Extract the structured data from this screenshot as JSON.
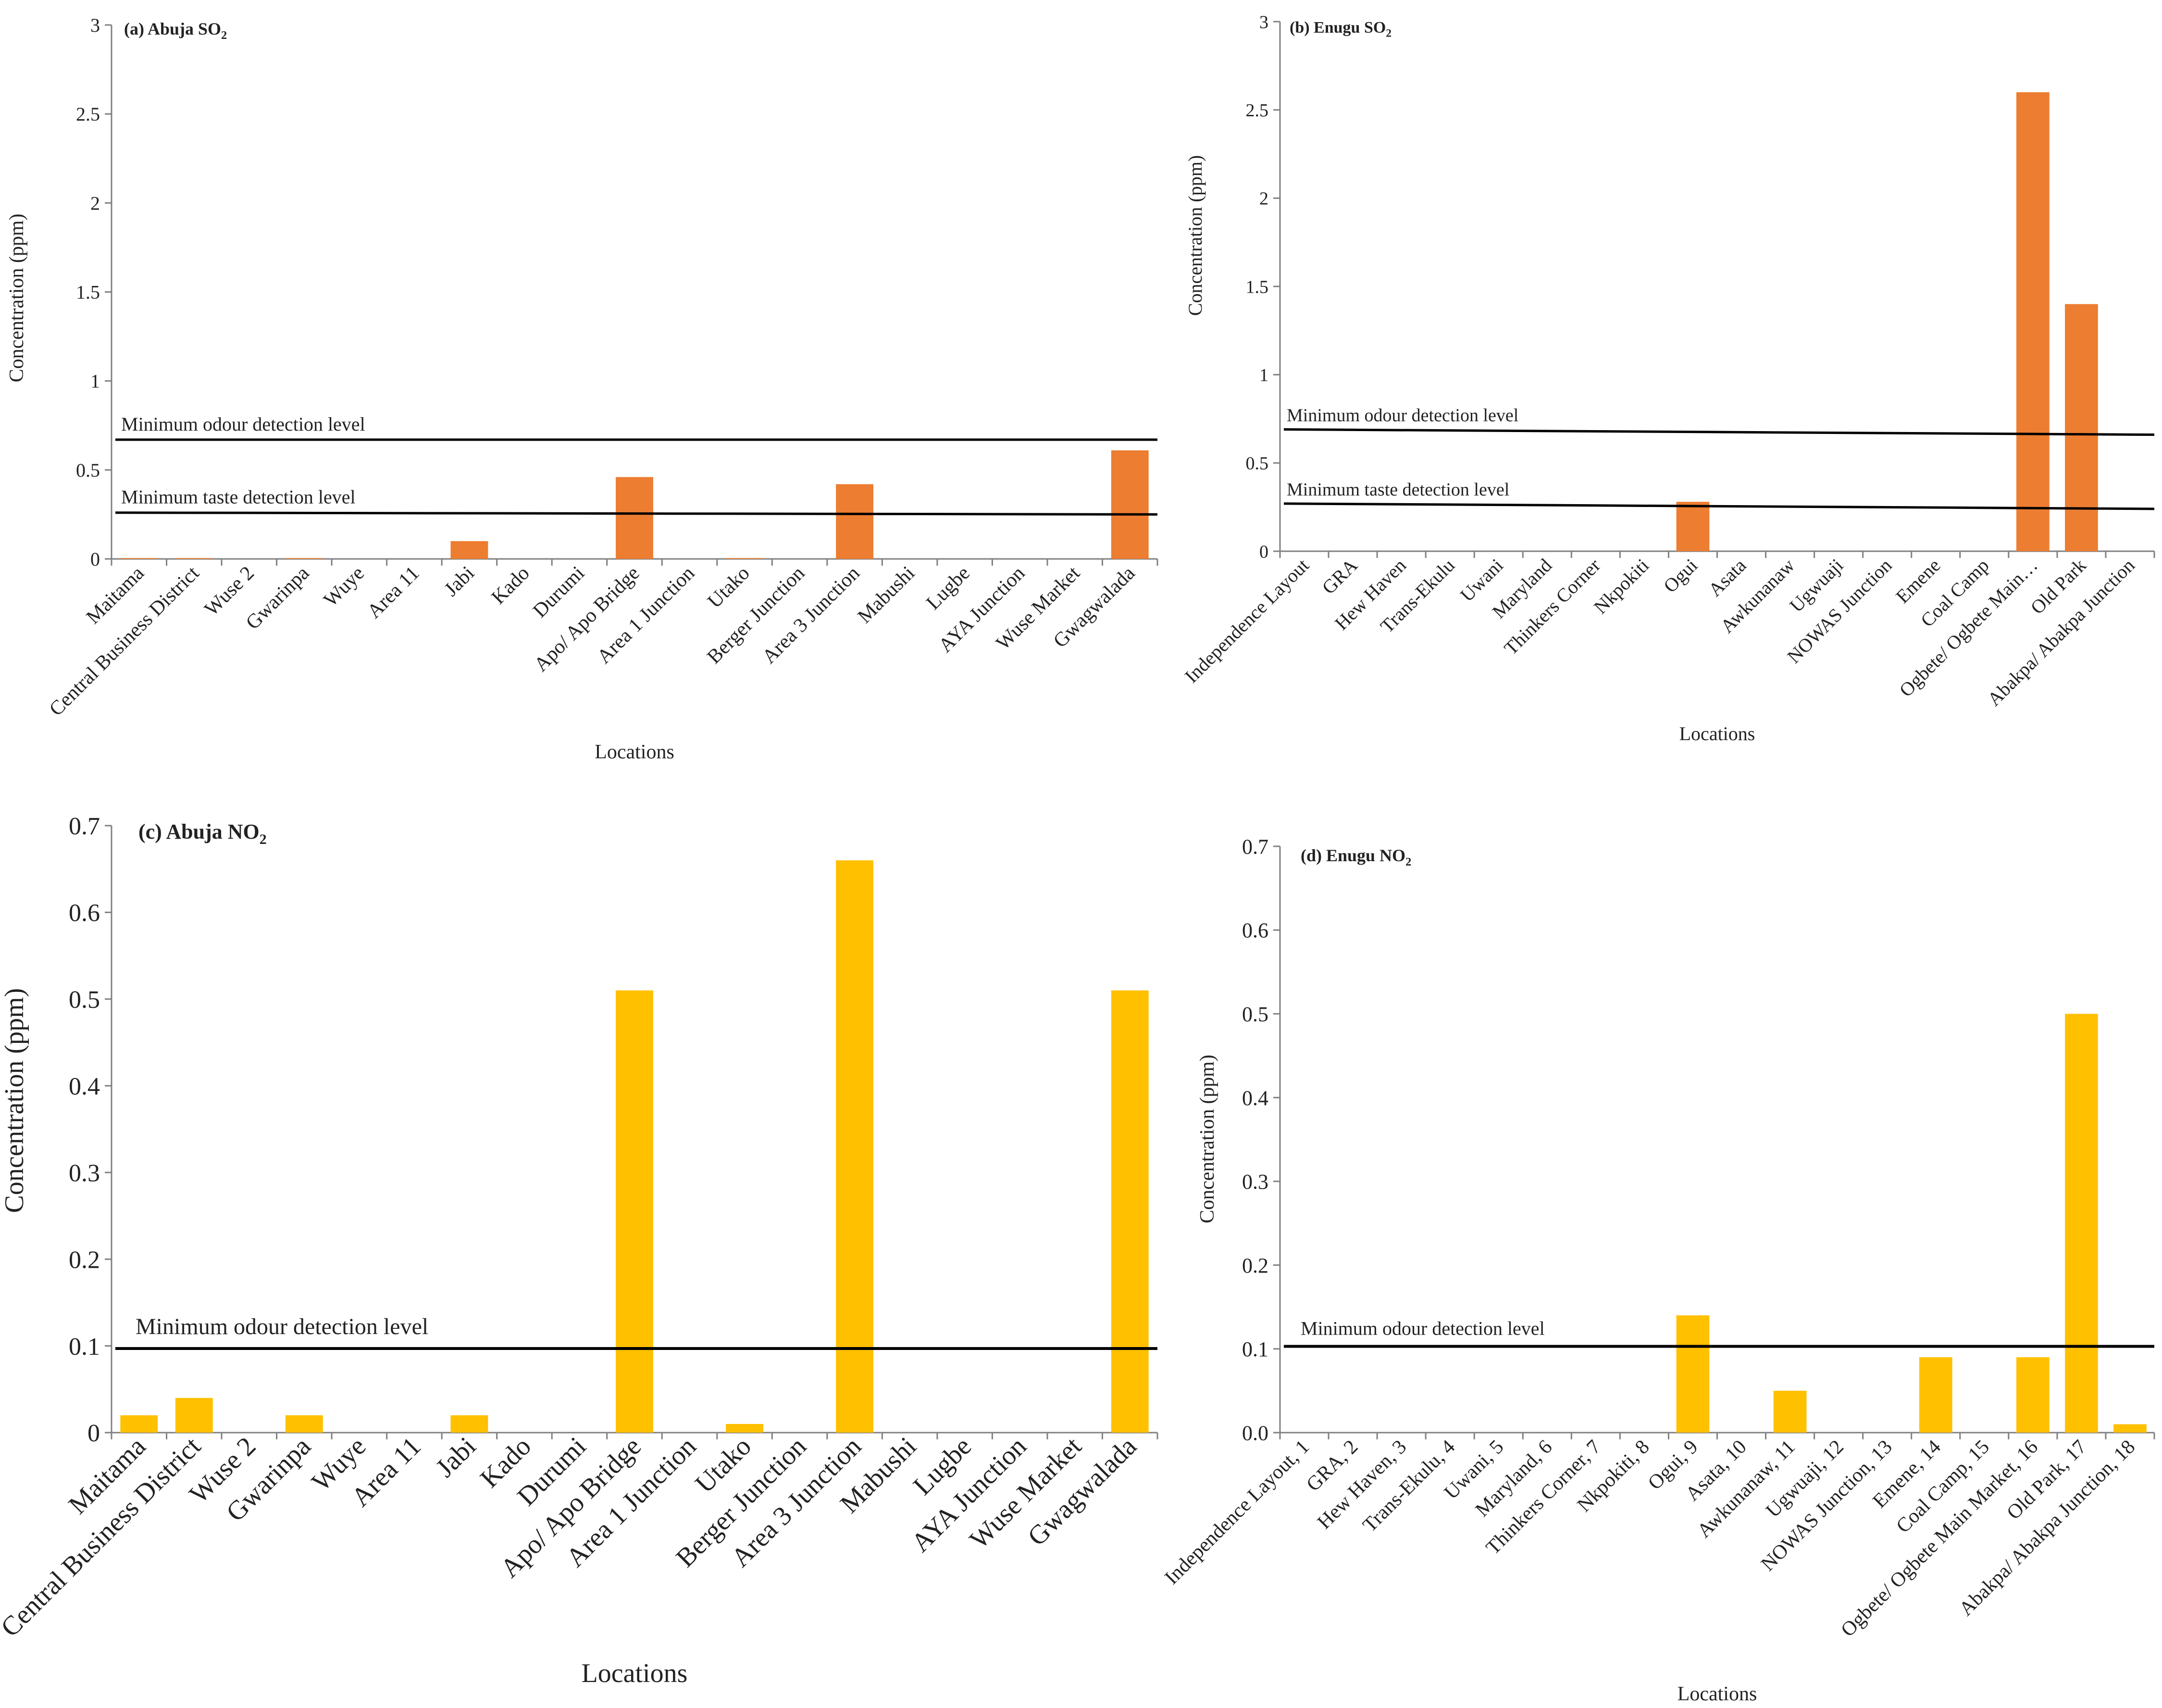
{
  "chart_data": [
    {
      "type": "bar",
      "panel_label": "(a) Abuja SO",
      "title_sub": "2",
      "xlabel": "Locations",
      "ylabel": "Concentration (ppm)",
      "ylim": [
        0,
        3
      ],
      "yticks": [
        "0",
        "0.5",
        "1",
        "1.5",
        "2",
        "2.5",
        "3"
      ],
      "bar_color": "#ED7D31",
      "categories": [
        "Maitama",
        "Central Business District",
        "Wuse 2",
        "Gwarinpa",
        "Wuye",
        "Area 11",
        "Jabi",
        "Kado",
        "Durumi",
        "Apo/ Apo Bridge",
        "Area 1 Junction",
        "Utako",
        "Berger Junction",
        "Area 3 Junction",
        "Mabushi",
        "Lugbe",
        "AYA Junction",
        "Wuse Market",
        "Gwagwalada"
      ],
      "values": [
        0.005,
        0.005,
        0,
        0.005,
        0,
        0,
        0.1,
        0,
        0,
        0.46,
        0,
        0.005,
        0,
        0.42,
        0,
        0,
        0,
        0,
        0.61
      ],
      "reference_lines": [
        {
          "label": "Minimum odour detection level",
          "y_start": 0.67,
          "y_end": 0.67
        },
        {
          "label": "Minimum taste detection level",
          "y_start": 0.26,
          "y_end": 0.25
        }
      ]
    },
    {
      "type": "bar",
      "panel_label": "(b) Enugu SO",
      "title_sub": "2",
      "xlabel": "Locations",
      "ylabel": "Concentration (ppm)",
      "ylim": [
        0,
        3
      ],
      "yticks": [
        "0",
        "0.5",
        "1",
        "1.5",
        "2",
        "2.5",
        "3"
      ],
      "bar_color": "#ED7D31",
      "categories": [
        "Independence Layout",
        "GRA",
        "Hew Haven",
        "Trans-Ekulu",
        "Uwani",
        "Maryland",
        "Thinkers Corner",
        "Nkpokiti",
        "Ogui",
        "Asata",
        "Awkunanaw",
        "Ugwuaji",
        "NOWAS Junction",
        "Emene",
        "Coal Camp",
        "Ogbete/ Ogbete Main…",
        "Old Park",
        "Abakpa/ Abakpa Junction"
      ],
      "values": [
        0,
        0,
        0,
        0,
        0,
        0,
        0,
        0,
        0.28,
        0,
        0,
        0,
        0,
        0,
        0,
        2.6,
        1.4,
        0
      ],
      "reference_lines": [
        {
          "label": "Minimum odour detection level",
          "y_start": 0.69,
          "y_end": 0.66
        },
        {
          "label": "Minimum taste detection level",
          "y_start": 0.27,
          "y_end": 0.24
        }
      ]
    },
    {
      "type": "bar",
      "panel_label": "(c) Abuja NO",
      "title_sub": "2",
      "xlabel": "Locations",
      "ylabel": "Concentration (ppm)",
      "ylim": [
        0,
        0.7
      ],
      "yticks": [
        "0",
        "0.1",
        "0.2",
        "0.3",
        "0.4",
        "0.5",
        "0.6",
        "0.7"
      ],
      "bar_color": "#FFC000",
      "categories": [
        "Maitama",
        "Central Business District",
        "Wuse 2",
        "Gwarinpa",
        "Wuye",
        "Area 11",
        "Jabi",
        "Kado",
        "Durumi",
        "Apo/ Apo Bridge",
        "Area 1 Junction",
        "Utako",
        "Berger Junction",
        "Area 3 Junction",
        "Mabushi",
        "Lugbe",
        "AYA Junction",
        "Wuse Market",
        "Gwagwalada"
      ],
      "values": [
        0.02,
        0.04,
        0,
        0.02,
        0,
        0,
        0.02,
        0,
        0,
        0.51,
        0,
        0.01,
        0,
        0.66,
        0,
        0,
        0,
        0,
        0.51
      ],
      "reference_lines": [
        {
          "label": "Minimum odour detection level",
          "y_start": 0.097,
          "y_end": 0.097
        }
      ]
    },
    {
      "type": "bar",
      "panel_label": "(d) Enugu NO",
      "title_sub": "2",
      "xlabel": "Locations",
      "ylabel": "Concentration (ppm)",
      "ylim": [
        0,
        0.7
      ],
      "yticks": [
        "0.0",
        "0.1",
        "0.2",
        "0.3",
        "0.4",
        "0.5",
        "0.6",
        "0.7"
      ],
      "bar_color": "#FFC000",
      "categories": [
        "Independence Layout, 1",
        "GRA, 2",
        "Hew Haven, 3",
        "Trans-Ekulu, 4",
        "Uwani, 5",
        "Maryland, 6",
        "Thinkers Corner, 7",
        "Nkpokiti, 8",
        "Ogui, 9",
        "Asata, 10",
        "Awkunanaw, 11",
        "Ugwuaji, 12",
        "NOWAS Junction, 13",
        "Emene, 14",
        "Coal Camp, 15",
        "Ogbete/ Ogbete Main Market, 16",
        "Old Park, 17",
        "Abakpa/ Abakpa Junction, 18"
      ],
      "values": [
        0,
        0,
        0,
        0,
        0,
        0,
        0,
        0,
        0.14,
        0,
        0.05,
        0,
        0,
        0.09,
        0,
        0.09,
        0.5,
        0.01
      ],
      "reference_lines": [
        {
          "label": "Minimum odour detection level",
          "y_start": 0.103,
          "y_end": 0.103
        }
      ]
    }
  ]
}
